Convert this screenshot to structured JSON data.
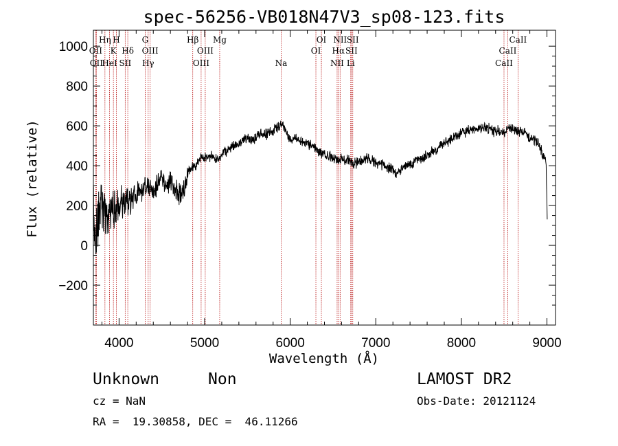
{
  "chart_data": {
    "type": "line",
    "title": "spec-56256-VB018N47V3_sp08-123.fits",
    "xlabel": "Wavelength (Å)",
    "ylabel": "Flux (relative)",
    "xlim": [
      3700,
      9100
    ],
    "ylim": [
      -400,
      1080
    ],
    "xticks": [
      4000,
      5000,
      6000,
      7000,
      8000,
      9000
    ],
    "yticks": [
      -200,
      0,
      200,
      400,
      600,
      800,
      1000
    ],
    "series": [
      {
        "name": "flux",
        "anchors": [
          [
            3700,
            180
          ],
          [
            3720,
            40
          ],
          [
            3750,
            120
          ],
          [
            3780,
            220
          ],
          [
            3800,
            200
          ],
          [
            3850,
            150
          ],
          [
            3900,
            180
          ],
          [
            3950,
            180
          ],
          [
            4000,
            200
          ],
          [
            4050,
            210
          ],
          [
            4100,
            230
          ],
          [
            4150,
            230
          ],
          [
            4200,
            260
          ],
          [
            4250,
            270
          ],
          [
            4300,
            290
          ],
          [
            4350,
            300
          ],
          [
            4400,
            260
          ],
          [
            4450,
            310
          ],
          [
            4500,
            330
          ],
          [
            4550,
            300
          ],
          [
            4600,
            330
          ],
          [
            4650,
            280
          ],
          [
            4700,
            250
          ],
          [
            4750,
            280
          ],
          [
            4800,
            360
          ],
          [
            4850,
            390
          ],
          [
            4900,
            400
          ],
          [
            4950,
            440
          ],
          [
            5000,
            440
          ],
          [
            5050,
            450
          ],
          [
            5100,
            440
          ],
          [
            5150,
            430
          ],
          [
            5200,
            450
          ],
          [
            5250,
            470
          ],
          [
            5300,
            490
          ],
          [
            5350,
            500
          ],
          [
            5400,
            510
          ],
          [
            5450,
            530
          ],
          [
            5500,
            540
          ],
          [
            5550,
            530
          ],
          [
            5600,
            540
          ],
          [
            5650,
            560
          ],
          [
            5700,
            560
          ],
          [
            5750,
            560
          ],
          [
            5800,
            580
          ],
          [
            5850,
            590
          ],
          [
            5900,
            610
          ],
          [
            5950,
            570
          ],
          [
            6000,
            520
          ],
          [
            6050,
            540
          ],
          [
            6100,
            530
          ],
          [
            6150,
            520
          ],
          [
            6200,
            510
          ],
          [
            6250,
            500
          ],
          [
            6300,
            490
          ],
          [
            6350,
            470
          ],
          [
            6400,
            450
          ],
          [
            6450,
            450
          ],
          [
            6500,
            440
          ],
          [
            6550,
            420
          ],
          [
            6600,
            440
          ],
          [
            6650,
            430
          ],
          [
            6700,
            420
          ],
          [
            6750,
            410
          ],
          [
            6800,
            420
          ],
          [
            6850,
            430
          ],
          [
            6900,
            440
          ],
          [
            6950,
            430
          ],
          [
            7000,
            420
          ],
          [
            7050,
            410
          ],
          [
            7100,
            400
          ],
          [
            7150,
            390
          ],
          [
            7200,
            380
          ],
          [
            7250,
            360
          ],
          [
            7300,
            380
          ],
          [
            7350,
            400
          ],
          [
            7400,
            410
          ],
          [
            7450,
            420
          ],
          [
            7500,
            430
          ],
          [
            7550,
            440
          ],
          [
            7600,
            450
          ],
          [
            7650,
            470
          ],
          [
            7700,
            480
          ],
          [
            7750,
            500
          ],
          [
            7800,
            510
          ],
          [
            7850,
            520
          ],
          [
            7900,
            540
          ],
          [
            7950,
            550
          ],
          [
            8000,
            560
          ],
          [
            8050,
            570
          ],
          [
            8100,
            580
          ],
          [
            8150,
            590
          ],
          [
            8200,
            580
          ],
          [
            8250,
            590
          ],
          [
            8300,
            590
          ],
          [
            8350,
            580
          ],
          [
            8400,
            570
          ],
          [
            8450,
            580
          ],
          [
            8500,
            560
          ],
          [
            8550,
            590
          ],
          [
            8600,
            580
          ],
          [
            8650,
            580
          ],
          [
            8700,
            570
          ],
          [
            8750,
            560
          ],
          [
            8800,
            540
          ],
          [
            8850,
            530
          ],
          [
            8900,
            510
          ],
          [
            8950,
            460
          ],
          [
            8990,
            420
          ],
          [
            9000,
            200
          ],
          [
            9005,
            80
          ]
        ]
      }
    ],
    "line_markers": [
      {
        "wl": 3727,
        "label": "OII",
        "row": 2
      },
      {
        "wl": 3735,
        "label": "OII",
        "row": 3
      },
      {
        "wl": 3835,
        "label": "Hη",
        "row": 1
      },
      {
        "wl": 3889,
        "label": "HeI",
        "row": 3
      },
      {
        "wl": 3934,
        "label": "K",
        "row": 2
      },
      {
        "wl": 3969,
        "label": "H",
        "row": 1
      },
      {
        "wl": 4072,
        "label": "SII",
        "row": 3
      },
      {
        "wl": 4102,
        "label": "Hδ",
        "row": 2
      },
      {
        "wl": 4305,
        "label": "G",
        "row": 1
      },
      {
        "wl": 4340,
        "label": "Hγ",
        "row": 3
      },
      {
        "wl": 4363,
        "label": "OIII",
        "row": 2
      },
      {
        "wl": 4861,
        "label": "Hβ",
        "row": 1
      },
      {
        "wl": 4959,
        "label": "OIII",
        "row": 3
      },
      {
        "wl": 5007,
        "label": "OIII",
        "row": 2
      },
      {
        "wl": 5176,
        "label": "Mg",
        "row": 1
      },
      {
        "wl": 5894,
        "label": "Na",
        "row": 3
      },
      {
        "wl": 6300,
        "label": "OI",
        "row": 2
      },
      {
        "wl": 6364,
        "label": "OI",
        "row": 1
      },
      {
        "wl": 6548,
        "label": "NII",
        "row": 3
      },
      {
        "wl": 6563,
        "label": "Hα",
        "row": 2
      },
      {
        "wl": 6583,
        "label": "NII",
        "row": 1
      },
      {
        "wl": 6707,
        "label": "Li",
        "row": 3
      },
      {
        "wl": 6716,
        "label": "SII",
        "row": 2
      },
      {
        "wl": 6731,
        "label": "SII",
        "row": 1
      },
      {
        "wl": 8498,
        "label": "CaII",
        "row": 3
      },
      {
        "wl": 8542,
        "label": "CaII",
        "row": 2
      },
      {
        "wl": 8662,
        "label": "CaII",
        "row": 1
      }
    ]
  },
  "info": {
    "object_class": "Unknown",
    "subclass": "Non",
    "survey": "LAMOST DR2",
    "redshift": "cz = NaN",
    "obs_date": "Obs-Date: 20121124",
    "coords": "RA =  19.30858, DEC =  46.11266"
  },
  "colors": {
    "axis": "#000000",
    "spectrum": "#000000",
    "marker_line": "#b30000"
  }
}
